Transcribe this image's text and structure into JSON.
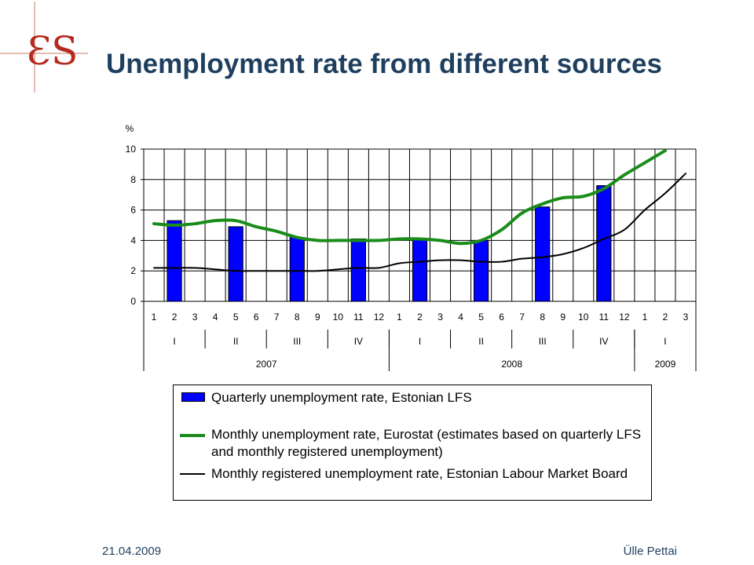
{
  "slide": {
    "title": "Unemployment rate from different sources",
    "footer_date": "21.04.2009",
    "footer_author": "Ülle Pettai",
    "logo_text": "ƐS"
  },
  "chart_data": {
    "type": "bar+line",
    "ylabel": "%",
    "ylim": [
      0,
      10
    ],
    "yticks": [
      0,
      2,
      4,
      6,
      8,
      10
    ],
    "grid": true,
    "months": [
      "1",
      "2",
      "3",
      "4",
      "5",
      "6",
      "7",
      "8",
      "9",
      "10",
      "11",
      "12",
      "1",
      "2",
      "3",
      "4",
      "5",
      "6",
      "7",
      "8",
      "9",
      "10",
      "11",
      "12",
      "1",
      "2",
      "3"
    ],
    "quarters": [
      {
        "label": "I",
        "start": 0,
        "end": 3
      },
      {
        "label": "II",
        "start": 3,
        "end": 6
      },
      {
        "label": "III",
        "start": 6,
        "end": 9
      },
      {
        "label": "IV",
        "start": 9,
        "end": 12
      },
      {
        "label": "I",
        "start": 12,
        "end": 15
      },
      {
        "label": "II",
        "start": 15,
        "end": 18
      },
      {
        "label": "III",
        "start": 18,
        "end": 21
      },
      {
        "label": "IV",
        "start": 21,
        "end": 24
      },
      {
        "label": "I",
        "start": 24,
        "end": 27
      }
    ],
    "years": [
      {
        "label": "2007",
        "start": 0,
        "end": 12
      },
      {
        "label": "2008",
        "start": 12,
        "end": 24
      },
      {
        "label": "2009",
        "start": 24,
        "end": 27
      }
    ],
    "series": [
      {
        "name": "Quarterly unemployment rate, Estonian LFS",
        "type": "bar",
        "color": "#0000ff",
        "points": [
          [
            1,
            5.3
          ],
          [
            4,
            4.9
          ],
          [
            7,
            4.2
          ],
          [
            10,
            4.1
          ],
          [
            13,
            4.1
          ],
          [
            16,
            4.0
          ],
          [
            19,
            6.2
          ],
          [
            22,
            7.6
          ]
        ]
      },
      {
        "name": "Monthly unemployment rate, Eurostat (estimates based on quarterly LFS and monthly registered unemployment)",
        "type": "line",
        "color": "#1a8c1a",
        "values": [
          5.1,
          5.0,
          5.1,
          5.3,
          5.3,
          4.9,
          4.6,
          4.2,
          4.0,
          4.0,
          4.0,
          4.0,
          4.1,
          4.1,
          4.0,
          3.8,
          4.0,
          4.7,
          5.8,
          6.4,
          6.8,
          6.9,
          7.4,
          8.3,
          9.1,
          9.9,
          null
        ]
      },
      {
        "name": "Monthly registered unemployment rate, Estonian Labour Market Board",
        "type": "line",
        "color": "#000000",
        "values": [
          2.2,
          2.2,
          2.2,
          2.1,
          2.0,
          2.0,
          2.0,
          2.0,
          2.0,
          2.1,
          2.2,
          2.2,
          2.5,
          2.6,
          2.7,
          2.7,
          2.6,
          2.6,
          2.8,
          2.9,
          3.1,
          3.5,
          4.1,
          4.7,
          6.0,
          7.1,
          8.4
        ]
      }
    ]
  }
}
